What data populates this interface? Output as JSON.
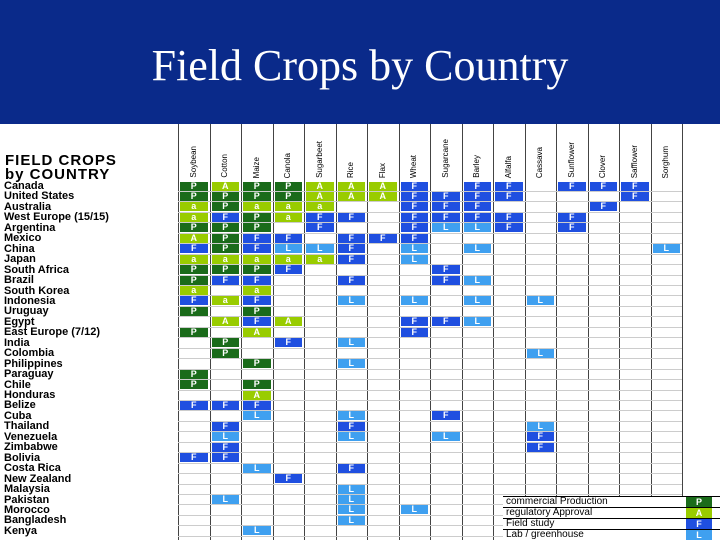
{
  "title": "Field Crops by Country",
  "heading": [
    "FIELD CROPS",
    "by COUNTRY"
  ],
  "crops": [
    "Soybean",
    "Cotton",
    "Maize",
    "Canola",
    "Sugarbeet",
    "Rice",
    "Flax",
    "Wheat",
    "Sugarcane",
    "Barley",
    "Alfalfa",
    "Cassava",
    "Sunflower",
    "Clover",
    "Safflower",
    "Sorghum"
  ],
  "colors": {
    "P": "#1a6b1a",
    "A": "#99cc00",
    "F": "#1f4fe0",
    "L": "#3fa0f0"
  },
  "legend": [
    {
      "label": "commercial Production",
      "code": "P"
    },
    {
      "label": "regulatory Approval",
      "code": "A"
    },
    {
      "label": "Field study",
      "code": "F"
    },
    {
      "label": "Lab / greenhouse",
      "code": "L"
    }
  ],
  "rows": [
    {
      "country": "Canada",
      "cells": {
        "0": "P",
        "1": "A",
        "2": "P",
        "3": "P",
        "4": "A",
        "5": "A",
        "6": "A",
        "7": "F",
        "9": "F",
        "10": "F",
        "12": "F",
        "13": "F",
        "14": "F"
      }
    },
    {
      "country": "United States",
      "cells": {
        "0": "P",
        "1": "P",
        "2": "P",
        "3": "P",
        "4": "A",
        "5": "A",
        "6": "A",
        "7": "F",
        "8": "F",
        "9": "F",
        "10": "F",
        "14": "F"
      }
    },
    {
      "country": "Australia",
      "cells": {
        "0": "a",
        "1": "P",
        "2": "a",
        "3": "a",
        "4": "a",
        "7": "F",
        "8": "F",
        "9": "F",
        "13": "F"
      }
    },
    {
      "country": "West Europe (15/15)",
      "cells": {
        "0": "a",
        "1": "F",
        "2": "P",
        "3": "a",
        "4": "F",
        "5": "F",
        "7": "F",
        "8": "F",
        "9": "F",
        "10": "F",
        "12": "F"
      }
    },
    {
      "country": "Argentina",
      "cells": {
        "0": "P",
        "1": "P",
        "2": "P",
        "4": "F",
        "7": "F",
        "8": "L",
        "9": "L",
        "10": "F",
        "12": "F"
      }
    },
    {
      "country": "Mexico",
      "cells": {
        "0": "A",
        "1": "P",
        "2": "F",
        "3": "F",
        "5": "F",
        "6": "F",
        "7": "F"
      }
    },
    {
      "country": "China",
      "cells": {
        "0": "F",
        "1": "P",
        "2": "F",
        "3": "L",
        "4": "L",
        "5": "F",
        "7": "L",
        "9": "L",
        "15": "L"
      }
    },
    {
      "country": "Japan",
      "cells": {
        "0": "a",
        "1": "a",
        "2": "a",
        "3": "a",
        "4": "a",
        "5": "F",
        "7": "L"
      }
    },
    {
      "country": "South Africa",
      "cells": {
        "0": "P",
        "1": "P",
        "2": "P",
        "3": "F",
        "8": "F"
      }
    },
    {
      "country": "Brazil",
      "cells": {
        "0": "P",
        "1": "F",
        "2": "F",
        "5": "F",
        "8": "F",
        "9": "L"
      }
    },
    {
      "country": "South Korea",
      "cells": {
        "0": "a",
        "2": "a"
      }
    },
    {
      "country": "Indonesia",
      "cells": {
        "0": "F",
        "1": "a",
        "2": "F",
        "5": "L",
        "7": "L",
        "9": "L",
        "11": "L"
      }
    },
    {
      "country": "Uruguay",
      "cells": {
        "0": "P",
        "2": "P"
      }
    },
    {
      "country": "Egypt",
      "cells": {
        "1": "A",
        "2": "F",
        "3": "A",
        "7": "F",
        "8": "F",
        "9": "L"
      }
    },
    {
      "country": "East Europe (7/12)",
      "cells": {
        "0": "P",
        "2": "A",
        "7": "F"
      }
    },
    {
      "country": "India",
      "cells": {
        "1": "P",
        "3": "F",
        "5": "L"
      }
    },
    {
      "country": "Colombia",
      "cells": {
        "1": "P",
        "11": "L"
      }
    },
    {
      "country": "Philippines",
      "cells": {
        "2": "P",
        "5": "L"
      }
    },
    {
      "country": "Paraguay",
      "cells": {
        "0": "P"
      }
    },
    {
      "country": "Chile",
      "cells": {
        "0": "P",
        "2": "P"
      }
    },
    {
      "country": "Honduras",
      "cells": {
        "2": "A"
      }
    },
    {
      "country": "Belize",
      "cells": {
        "0": "F",
        "1": "F",
        "2": "F"
      }
    },
    {
      "country": "Cuba",
      "cells": {
        "2": "L",
        "5": "L",
        "8": "F"
      }
    },
    {
      "country": "Thailand",
      "cells": {
        "1": "F",
        "5": "F",
        "11": "L"
      }
    },
    {
      "country": "Venezuela",
      "cells": {
        "1": "L",
        "5": "L",
        "8": "L",
        "11": "F"
      }
    },
    {
      "country": "Zimbabwe",
      "cells": {
        "1": "F",
        "11": "F"
      }
    },
    {
      "country": "Bolivia",
      "cells": {
        "0": "F",
        "1": "F"
      }
    },
    {
      "country": "Costa Rica",
      "cells": {
        "2": "L",
        "5": "F"
      }
    },
    {
      "country": "New Zealand",
      "cells": {
        "3": "F"
      }
    },
    {
      "country": "Malaysia",
      "cells": {
        "5": "L"
      }
    },
    {
      "country": "Pakistan",
      "cells": {
        "1": "L",
        "5": "L"
      }
    },
    {
      "country": "Morocco",
      "cells": {
        "5": "L",
        "7": "L"
      }
    },
    {
      "country": "Bangladesh",
      "cells": {
        "5": "L"
      }
    },
    {
      "country": "Kenya",
      "cells": {
        "2": "L"
      }
    }
  ]
}
